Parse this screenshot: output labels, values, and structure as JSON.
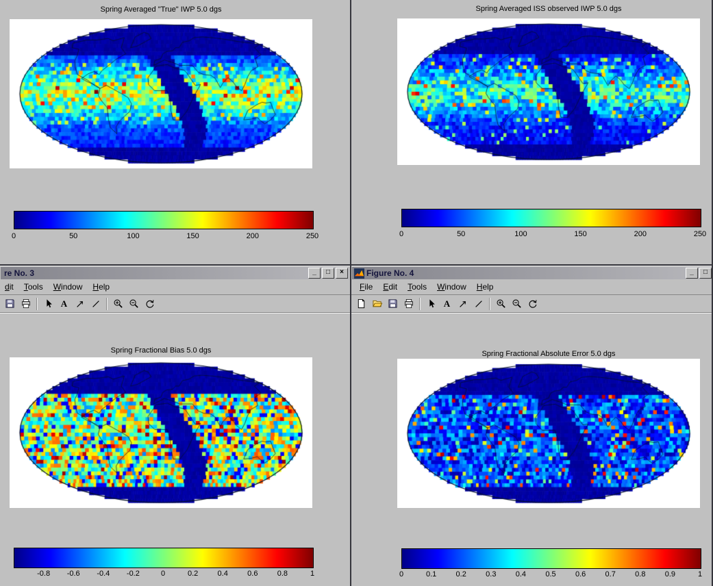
{
  "colors": {
    "desktop_gray": "#c0c0c0",
    "colormap": "jet",
    "map_nodata_blue": "#000087"
  },
  "window_controls": {
    "minimize": "_",
    "maximize": "□",
    "close": "×"
  },
  "icons": {
    "new_file": "blank-page",
    "open_file": "folder",
    "save": "floppy-disk",
    "print": "printer",
    "pointer": "cursor-arrow",
    "text_tool": "A",
    "arrow_tool": "diagonal-arrow",
    "line_tool": "slash",
    "zoom_in": "magnifier-plus",
    "zoom_out": "magnifier-minus",
    "rotate3d": "rotate-circle",
    "figure_icon": "matlab-figure-logo"
  },
  "figures": {
    "fig1": {
      "plot_title": "Spring Averaged \"True\" IWP 5.0 dgs",
      "ticks": [
        "0",
        "50",
        "100",
        "150",
        "200",
        "250"
      ]
    },
    "fig2": {
      "plot_title": "Spring Averaged ISS observed IWP 5.0 dgs",
      "ticks": [
        "0",
        "50",
        "100",
        "150",
        "200",
        "250"
      ]
    },
    "fig3": {
      "window_title": "re No. 3",
      "menu": {
        "edit": "dit",
        "tools": "Tools",
        "window": "Window",
        "help": "Help"
      },
      "plot_title": "Spring Fractional Bias 5.0 dgs",
      "ticks": [
        "-0.8",
        "-0.6",
        "-0.4",
        "-0.2",
        "0",
        "0.2",
        "0.4",
        "0.6",
        "0.8",
        "1"
      ]
    },
    "fig4": {
      "window_title": "Figure No. 4",
      "menu": {
        "file": "File",
        "edit": "Edit",
        "tools": "Tools",
        "window": "Window",
        "help": "Help"
      },
      "plot_title": "Spring Fractional Absolute Error 5.0 dgs",
      "ticks": [
        "0",
        "0.1",
        "0.2",
        "0.3",
        "0.4",
        "0.5",
        "0.6",
        "0.7",
        "0.8",
        "0.9",
        "1"
      ]
    }
  },
  "chart_data": [
    {
      "type": "heatmap",
      "title": "Spring Averaged \"True\" IWP 5.0 dgs",
      "projection": "mollweide-world-map",
      "colormap": "jet",
      "colorbar_range": [
        0,
        250
      ],
      "colorbar_ticks": [
        0,
        50,
        100,
        150,
        200,
        250
      ],
      "description": "5-degree gridded global IWP field, mostly blue/cyan with green-yellow tropics; dark-blue no-data swath and polar cap"
    },
    {
      "type": "heatmap",
      "title": "Spring Averaged ISS observed IWP 5.0 dgs",
      "projection": "mollweide-world-map",
      "colormap": "jet",
      "colorbar_range": [
        0,
        250
      ],
      "colorbar_ticks": [
        0,
        50,
        100,
        150,
        200,
        250
      ],
      "description": "5-degree gridded observed IWP, darker blue overall with scattered bright cells; dark-blue no-data swath"
    },
    {
      "type": "heatmap",
      "title": "Spring Fractional Bias 5.0 dgs",
      "projection": "mollweide-world-map",
      "colormap": "jet",
      "colorbar_range": [
        -1,
        1
      ],
      "colorbar_ticks": [
        -0.8,
        -0.6,
        -0.4,
        -0.2,
        0,
        0.2,
        0.4,
        0.6,
        0.8,
        1
      ],
      "description": "Noisy cyan/green/yellow field with sparse red cells; dark-blue no-data swath"
    },
    {
      "type": "heatmap",
      "title": "Spring Fractional Absolute Error 5.0 dgs",
      "projection": "mollweide-world-map",
      "colormap": "jet",
      "colorbar_range": [
        0,
        1
      ],
      "colorbar_ticks": [
        0,
        0.1,
        0.2,
        0.3,
        0.4,
        0.5,
        0.6,
        0.7,
        0.8,
        0.9,
        1
      ],
      "description": "Mostly dark blue field with scattered cyan/yellow/red speckles; dark-blue no-data swath"
    }
  ]
}
